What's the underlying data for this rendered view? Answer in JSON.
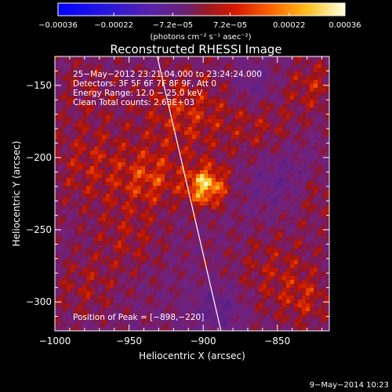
{
  "chart_data": {
    "type": "heatmap",
    "title": "Reconstructed RHESSI Image",
    "xlabel": "Heliocentric X (arcsec)",
    "ylabel": "Heliocentric Y (arcsec)",
    "xlim": [
      -1000,
      -815
    ],
    "ylim": [
      -320,
      -130
    ],
    "xticks": [
      -1000,
      -950,
      -900,
      -850
    ],
    "xtick_labels": [
      "−1000",
      "−950",
      "−900",
      "−850"
    ],
    "yticks": [
      -150,
      -200,
      -250,
      -300
    ],
    "ytick_labels": [
      "−150",
      "−200",
      "−250",
      "−300"
    ],
    "colorbar": {
      "range": [
        -0.00036,
        0.00036
      ],
      "ticks": [
        -0.00036,
        -0.00022,
        -7.2e-05,
        7.2e-05,
        0.00022,
        0.00036
      ],
      "tick_labels": [
        "−0.00036",
        "−0.00022",
        "−7.2e−05",
        "7.2e−05",
        "0.00022",
        "0.00036"
      ],
      "unit_label": "(photons cm⁻² s⁻¹ asec⁻²)"
    },
    "annotations": [
      "25−May−2012 23:21:04.000 to 23:24:24.000",
      "Detectors: 3F 5F 6F 7F 8F 9F, Att 0",
      "Energy Range: 12.0 − 25.0 keV",
      "Clean     Total counts: 2.63E+03"
    ],
    "peak_label": "Position of Peak = [−898,−220]",
    "peak": [
      -898,
      -220
    ],
    "limb_line": [
      [
        -931,
        -130
      ],
      [
        -888,
        -320
      ]
    ],
    "footer": "9−May−2014 10:23"
  }
}
